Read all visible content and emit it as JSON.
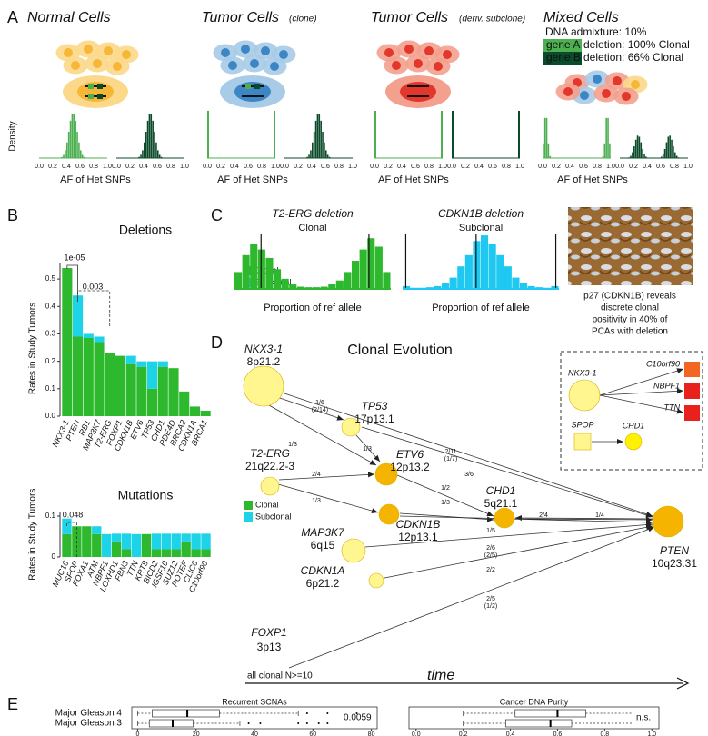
{
  "panel_labels": [
    "A",
    "B",
    "C",
    "D",
    "E"
  ],
  "panel_a": {
    "titles": [
      {
        "text": "Normal Cells"
      },
      {
        "text": "Tumor Cells",
        "note": "(clone)"
      },
      {
        "text": "Tumor Cells",
        "note": "(deriv. subclone)"
      },
      {
        "text": "Mixed Cells"
      }
    ],
    "admixture": "DNA admixture: 10%",
    "gene_a": "gene A",
    "gene_a_text": "deletion: 100% Clonal",
    "gene_b": "gene B",
    "gene_b_text": "deletion: 66% Clonal",
    "y_label": "Density",
    "x_label": "AF of Het SNPs",
    "ticks": [
      "0.0",
      "0.2",
      "0.4",
      "0.6",
      "0.8",
      "1.0"
    ]
  },
  "chart_data": [
    {
      "type": "bar",
      "stacked": true,
      "title": "Deletions",
      "y_label": "Rates in Study Tumors",
      "categories": [
        "NKX3-1",
        "PTEN",
        "RB1",
        "MAP3K7",
        "T2-ERG",
        "FOXP1",
        "CDKN1B",
        "ETV6",
        "TP53",
        "CHD1",
        "PDE4D",
        "BRCA2",
        "CDKN1A",
        "BRCA1"
      ],
      "series": [
        {
          "name": "Clonal",
          "color": "#2db82d",
          "values": [
            0.54,
            0.29,
            0.285,
            0.27,
            0.23,
            0.22,
            0.19,
            0.18,
            0.1,
            0.18,
            0.175,
            0.09,
            0.035,
            0.02
          ]
        },
        {
          "name": "Subclonal",
          "color": "#1dd3e8",
          "values": [
            0,
            0.15,
            0.015,
            0.02,
            0,
            0,
            0.03,
            0.02,
            0.1,
            0.02,
            0,
            0,
            0,
            0
          ]
        }
      ],
      "ylim": [
        0,
        0.56
      ],
      "yticks": [
        {
          "value": 0,
          "label": "0.0"
        },
        0.1,
        0.2,
        0.3,
        0.4,
        0.5
      ],
      "annotations": [
        "1e-05",
        "0.003"
      ]
    },
    {
      "type": "bar",
      "stacked": true,
      "title": "Mutations",
      "y_label": "Rates in Study Tumors",
      "categories": [
        "MUC16",
        "SPOP",
        "FOXA1",
        "ATM",
        "NBPF1",
        "LOXHD1",
        "FBN3",
        "TTN",
        "KRT8",
        "BICD2",
        "IGSF10",
        "SUZ12",
        "POTEF",
        "CLIC6",
        "C10orf90"
      ],
      "series": [
        {
          "name": "Clonal",
          "color": "#2db82d",
          "values": [
            0.056,
            0.075,
            0.075,
            0.056,
            0,
            0.038,
            0.019,
            0,
            0.056,
            0.019,
            0.019,
            0.019,
            0.038,
            0.019,
            0.019
          ]
        },
        {
          "name": "Subclonal",
          "color": "#1dd3e8",
          "values": [
            0.038,
            0,
            0,
            0.019,
            0.056,
            0.019,
            0.038,
            0.056,
            0,
            0.038,
            0.038,
            0.038,
            0.019,
            0.038,
            0.038
          ]
        }
      ],
      "ylim": [
        0,
        0.11
      ],
      "yticks": [
        0,
        0.1
      ],
      "annotations": [
        "0.048"
      ]
    },
    {
      "type": "histogram",
      "title": "T2-ERG deletion",
      "subtitle": "Clonal",
      "x_label": "Proportion of ref allele",
      "color": "#2db82d",
      "bins": [
        0,
        0.05,
        0.1,
        0.15,
        0.2,
        0.25,
        0.3,
        0.35,
        0.4,
        0.45,
        0.5,
        0.55,
        0.6,
        0.65,
        0.7,
        0.75,
        0.8,
        0.85,
        0.9,
        0.95,
        1
      ],
      "values": [
        0.3,
        0.6,
        0.8,
        0.7,
        0.55,
        0.35,
        0.18,
        0.08,
        0.04,
        0.03,
        0.03,
        0.04,
        0.08,
        0.15,
        0.3,
        0.5,
        0.7,
        0.9,
        0.75,
        0.3
      ],
      "xlim": [
        0,
        1
      ],
      "ylim": [
        0,
        1
      ],
      "markers": [
        0.17,
        0.86
      ]
    },
    {
      "type": "histogram",
      "title": "CDKN1B deletion",
      "subtitle": "Subclonal",
      "x_label": "Proportion of ref allele",
      "color": "#1ec8f0",
      "bins": [
        0,
        0.05,
        0.1,
        0.15,
        0.2,
        0.25,
        0.3,
        0.35,
        0.4,
        0.45,
        0.5,
        0.55,
        0.6,
        0.65,
        0.7,
        0.75,
        0.8,
        0.85,
        0.9,
        0.95,
        1
      ],
      "values": [
        0.05,
        0.02,
        0.02,
        0.03,
        0.05,
        0.1,
        0.2,
        0.4,
        0.6,
        0.85,
        0.95,
        0.8,
        0.6,
        0.4,
        0.2,
        0.1,
        0.05,
        0.03,
        0.02,
        0.05
      ],
      "xlim": [
        0,
        1
      ],
      "ylim": [
        0,
        1
      ],
      "markers": [
        0.02,
        0.47,
        0.98
      ]
    },
    {
      "type": "box",
      "title": "Recurrent SCNAs",
      "categories": [
        "Major Gleason 4",
        "Major Gleason 3"
      ],
      "boxes": [
        {
          "whislo": 0,
          "q1": 5,
          "med": 17,
          "q3": 28,
          "whishi": 55,
          "fliers": [
            58,
            65,
            75
          ]
        },
        {
          "whislo": 0,
          "q1": 4,
          "med": 12,
          "q3": 19,
          "whishi": 35,
          "fliers": [
            38,
            42,
            55,
            58,
            62,
            65
          ]
        }
      ],
      "xlim": [
        -2,
        82
      ],
      "xticks": [
        0,
        20,
        40,
        60,
        80
      ],
      "annotation": "0.0059"
    },
    {
      "type": "box",
      "title": "Cancer DNA Purity",
      "categories": [
        "Major Gleason 4",
        "Major Gleason 3"
      ],
      "boxes": [
        {
          "whislo": 0.2,
          "q1": 0.42,
          "med": 0.6,
          "q3": 0.72,
          "whishi": 0.92,
          "fliers": []
        },
        {
          "whislo": 0.2,
          "q1": 0.38,
          "med": 0.57,
          "q3": 0.66,
          "whishi": 0.92,
          "fliers": []
        }
      ],
      "xlim": [
        -0.03,
        1.03
      ],
      "xticks": [
        {
          "value": 0,
          "label": "0.0"
        },
        0.2,
        0.4,
        0.6,
        0.8,
        {
          "value": 1,
          "label": "1.0"
        }
      ],
      "annotation": "n.s."
    }
  ],
  "panel_c": {
    "caption": [
      "p27 (CDKN1B) reveals",
      "discrete clonal",
      "positivity in 40% of",
      "PCAs with deletion"
    ]
  },
  "panel_d": {
    "title": "Clonal Evolution",
    "nodes": [
      {
        "name": "NKX3-1",
        "locus": "8p21.2"
      },
      {
        "name": "TP53",
        "locus": "17p13.1"
      },
      {
        "name": "T2-ERG",
        "locus": "21q22.2-3"
      },
      {
        "name": "ETV6",
        "locus": "12p13.2"
      },
      {
        "name": "CHD1",
        "locus": "5q21.1"
      },
      {
        "name": "CDKN1B",
        "locus": "12p13.1"
      },
      {
        "name": "MAP3K7",
        "locus": "6q15"
      },
      {
        "name": "CDKN1A",
        "locus": "6p21.2"
      },
      {
        "name": "FOXP1",
        "locus": "3p13"
      },
      {
        "name": "PTEN",
        "locus": "10q23.31"
      }
    ],
    "edges": [
      {
        "label": "1/6",
        "sub": "(2/14)"
      },
      {
        "label": "1/3"
      },
      {
        "label": "2/11",
        "sub": "(1/7)"
      },
      {
        "label": "1/3"
      },
      {
        "label": "3/6"
      },
      {
        "label": "2/4"
      },
      {
        "label": "1/3"
      },
      {
        "label": "1/2"
      },
      {
        "label": "1/3"
      },
      {
        "label": "2/4"
      },
      {
        "label": "1/4"
      },
      {
        "label": "1/5"
      },
      {
        "label": "2/6",
        "sub": "(2/5)"
      },
      {
        "label": "2/2"
      },
      {
        "label": "2/5",
        "sub": "(1/2)"
      }
    ],
    "inset": [
      "NKX3-1",
      "C10orf90",
      "NBPF1",
      "TTN",
      "SPOP",
      "CHD1"
    ],
    "footer": "all clonal N>=10",
    "time": "time"
  }
}
